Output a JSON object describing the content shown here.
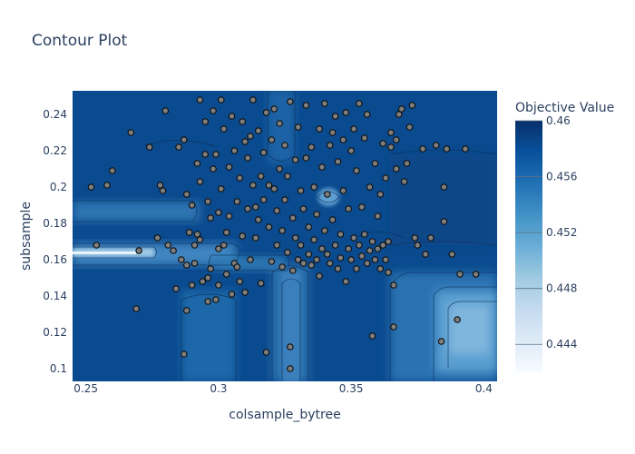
{
  "chart_data": {
    "type": "contour",
    "title": "Contour Plot",
    "xlabel": "colsample_bytree",
    "ylabel": "subsample",
    "xlim": [
      0.245,
      0.405
    ],
    "ylim": [
      0.093,
      0.253
    ],
    "x_ticks": [
      0.25,
      0.3,
      0.35,
      0.4
    ],
    "x_tick_labels": [
      "0.25",
      "0.3",
      "0.35",
      "0.4"
    ],
    "y_ticks": [
      0.1,
      0.12,
      0.14,
      0.16,
      0.18,
      0.2,
      0.22,
      0.24
    ],
    "y_tick_labels": [
      "0.1",
      "0.12",
      "0.14",
      "0.16",
      "0.18",
      "0.2",
      "0.22",
      "0.24"
    ],
    "colorbar": {
      "title": "Objective Value",
      "range": [
        0.442,
        0.46
      ],
      "ticks": [
        0.444,
        0.448,
        0.452,
        0.456,
        0.46
      ],
      "tick_labels": [
        "0.444",
        "0.448",
        "0.452",
        "0.456",
        "0.46"
      ],
      "colors": [
        "#f7fbff",
        "#deebf7",
        "#c6dbef",
        "#9ecae1",
        "#6baed6",
        "#4292c6",
        "#2171b5",
        "#08519c",
        "#08306b"
      ]
    },
    "points": [
      [
        0.252,
        0.2
      ],
      [
        0.254,
        0.168
      ],
      [
        0.258,
        0.201
      ],
      [
        0.26,
        0.209
      ],
      [
        0.267,
        0.23
      ],
      [
        0.269,
        0.133
      ],
      [
        0.27,
        0.165
      ],
      [
        0.274,
        0.222
      ],
      [
        0.277,
        0.172
      ],
      [
        0.278,
        0.201
      ],
      [
        0.279,
        0.198
      ],
      [
        0.28,
        0.242
      ],
      [
        0.281,
        0.168
      ],
      [
        0.283,
        0.165
      ],
      [
        0.284,
        0.144
      ],
      [
        0.285,
        0.222
      ],
      [
        0.286,
        0.16
      ],
      [
        0.287,
        0.108
      ],
      [
        0.287,
        0.226
      ],
      [
        0.288,
        0.132
      ],
      [
        0.288,
        0.157
      ],
      [
        0.288,
        0.196
      ],
      [
        0.289,
        0.175
      ],
      [
        0.29,
        0.19
      ],
      [
        0.29,
        0.146
      ],
      [
        0.291,
        0.168
      ],
      [
        0.291,
        0.158
      ],
      [
        0.292,
        0.174
      ],
      [
        0.292,
        0.213
      ],
      [
        0.293,
        0.203
      ],
      [
        0.293,
        0.171
      ],
      [
        0.293,
        0.248
      ],
      [
        0.294,
        0.148
      ],
      [
        0.295,
        0.218
      ],
      [
        0.295,
        0.236
      ],
      [
        0.296,
        0.15
      ],
      [
        0.296,
        0.192
      ],
      [
        0.296,
        0.137
      ],
      [
        0.297,
        0.183
      ],
      [
        0.297,
        0.155
      ],
      [
        0.298,
        0.242
      ],
      [
        0.298,
        0.21
      ],
      [
        0.299,
        0.218
      ],
      [
        0.299,
        0.138
      ],
      [
        0.3,
        0.186
      ],
      [
        0.3,
        0.166
      ],
      [
        0.3,
        0.146
      ],
      [
        0.301,
        0.199
      ],
      [
        0.301,
        0.248
      ],
      [
        0.302,
        0.232
      ],
      [
        0.302,
        0.168
      ],
      [
        0.303,
        0.152
      ],
      [
        0.303,
        0.175
      ],
      [
        0.304,
        0.211
      ],
      [
        0.304,
        0.184
      ],
      [
        0.305,
        0.141
      ],
      [
        0.305,
        0.239
      ],
      [
        0.306,
        0.158
      ],
      [
        0.306,
        0.22
      ],
      [
        0.307,
        0.192
      ],
      [
        0.307,
        0.156
      ],
      [
        0.308,
        0.148
      ],
      [
        0.308,
        0.205
      ],
      [
        0.309,
        0.236
      ],
      [
        0.309,
        0.173
      ],
      [
        0.31,
        0.142
      ],
      [
        0.31,
        0.225
      ],
      [
        0.311,
        0.188
      ],
      [
        0.311,
        0.216
      ],
      [
        0.312,
        0.228
      ],
      [
        0.312,
        0.16
      ],
      [
        0.313,
        0.201
      ],
      [
        0.313,
        0.248
      ],
      [
        0.314,
        0.189
      ],
      [
        0.314,
        0.172
      ],
      [
        0.315,
        0.231
      ],
      [
        0.315,
        0.182
      ],
      [
        0.316,
        0.206
      ],
      [
        0.316,
        0.147
      ],
      [
        0.317,
        0.193
      ],
      [
        0.317,
        0.219
      ],
      [
        0.318,
        0.241
      ],
      [
        0.318,
        0.109
      ],
      [
        0.319,
        0.201
      ],
      [
        0.319,
        0.178
      ],
      [
        0.32,
        0.226
      ],
      [
        0.32,
        0.159
      ],
      [
        0.321,
        0.243
      ],
      [
        0.321,
        0.199
      ],
      [
        0.322,
        0.168
      ],
      [
        0.322,
        0.187
      ],
      [
        0.323,
        0.21
      ],
      [
        0.323,
        0.235
      ],
      [
        0.324,
        0.156
      ],
      [
        0.324,
        0.176
      ],
      [
        0.325,
        0.223
      ],
      [
        0.325,
        0.193
      ],
      [
        0.326,
        0.164
      ],
      [
        0.326,
        0.206
      ],
      [
        0.327,
        0.247
      ],
      [
        0.327,
        0.112
      ],
      [
        0.327,
        0.1
      ],
      [
        0.328,
        0.183
      ],
      [
        0.328,
        0.154
      ],
      [
        0.329,
        0.172
      ],
      [
        0.329,
        0.215
      ],
      [
        0.33,
        0.233
      ],
      [
        0.33,
        0.16
      ],
      [
        0.331,
        0.198
      ],
      [
        0.331,
        0.168
      ],
      [
        0.332,
        0.188
      ],
      [
        0.332,
        0.158
      ],
      [
        0.333,
        0.245
      ],
      [
        0.333,
        0.216
      ],
      [
        0.334,
        0.178
      ],
      [
        0.334,
        0.163
      ],
      [
        0.335,
        0.222
      ],
      [
        0.335,
        0.157
      ],
      [
        0.336,
        0.171
      ],
      [
        0.336,
        0.2
      ],
      [
        0.337,
        0.185
      ],
      [
        0.337,
        0.16
      ],
      [
        0.338,
        0.232
      ],
      [
        0.338,
        0.151
      ],
      [
        0.339,
        0.166
      ],
      [
        0.339,
        0.211
      ],
      [
        0.34,
        0.246
      ],
      [
        0.34,
        0.176
      ],
      [
        0.341,
        0.163
      ],
      [
        0.341,
        0.196
      ],
      [
        0.342,
        0.158
      ],
      [
        0.342,
        0.223
      ],
      [
        0.343,
        0.23
      ],
      [
        0.343,
        0.182
      ],
      [
        0.344,
        0.168
      ],
      [
        0.344,
        0.239
      ],
      [
        0.345,
        0.155
      ],
      [
        0.345,
        0.214
      ],
      [
        0.346,
        0.174
      ],
      [
        0.346,
        0.161
      ],
      [
        0.347,
        0.226
      ],
      [
        0.347,
        0.198
      ],
      [
        0.348,
        0.148
      ],
      [
        0.348,
        0.241
      ],
      [
        0.349,
        0.166
      ],
      [
        0.349,
        0.188
      ],
      [
        0.35,
        0.22
      ],
      [
        0.35,
        0.16
      ],
      [
        0.351,
        0.232
      ],
      [
        0.351,
        0.172
      ],
      [
        0.352,
        0.209
      ],
      [
        0.352,
        0.155
      ],
      [
        0.353,
        0.168
      ],
      [
        0.353,
        0.246
      ],
      [
        0.354,
        0.189
      ],
      [
        0.354,
        0.162
      ],
      [
        0.355,
        0.227
      ],
      [
        0.355,
        0.174
      ],
      [
        0.356,
        0.158
      ],
      [
        0.356,
        0.24
      ],
      [
        0.357,
        0.165
      ],
      [
        0.357,
        0.2
      ],
      [
        0.358,
        0.118
      ],
      [
        0.358,
        0.17
      ],
      [
        0.359,
        0.16
      ],
      [
        0.359,
        0.213
      ],
      [
        0.36,
        0.166
      ],
      [
        0.36,
        0.184
      ],
      [
        0.361,
        0.155
      ],
      [
        0.361,
        0.196
      ],
      [
        0.362,
        0.168
      ],
      [
        0.362,
        0.224
      ],
      [
        0.363,
        0.16
      ],
      [
        0.363,
        0.205
      ],
      [
        0.364,
        0.17
      ],
      [
        0.364,
        0.153
      ],
      [
        0.365,
        0.222
      ],
      [
        0.365,
        0.23
      ],
      [
        0.366,
        0.146
      ],
      [
        0.366,
        0.123
      ],
      [
        0.367,
        0.21
      ],
      [
        0.367,
        0.226
      ],
      [
        0.368,
        0.24
      ],
      [
        0.369,
        0.243
      ],
      [
        0.37,
        0.203
      ],
      [
        0.371,
        0.213
      ],
      [
        0.372,
        0.233
      ],
      [
        0.373,
        0.245
      ],
      [
        0.374,
        0.172
      ],
      [
        0.375,
        0.168
      ],
      [
        0.377,
        0.221
      ],
      [
        0.378,
        0.163
      ],
      [
        0.38,
        0.172
      ],
      [
        0.382,
        0.223
      ],
      [
        0.384,
        0.115
      ],
      [
        0.385,
        0.181
      ],
      [
        0.385,
        0.2
      ],
      [
        0.386,
        0.221
      ],
      [
        0.388,
        0.163
      ],
      [
        0.39,
        0.127
      ],
      [
        0.391,
        0.152
      ],
      [
        0.393,
        0.221
      ],
      [
        0.397,
        0.152
      ]
    ]
  }
}
